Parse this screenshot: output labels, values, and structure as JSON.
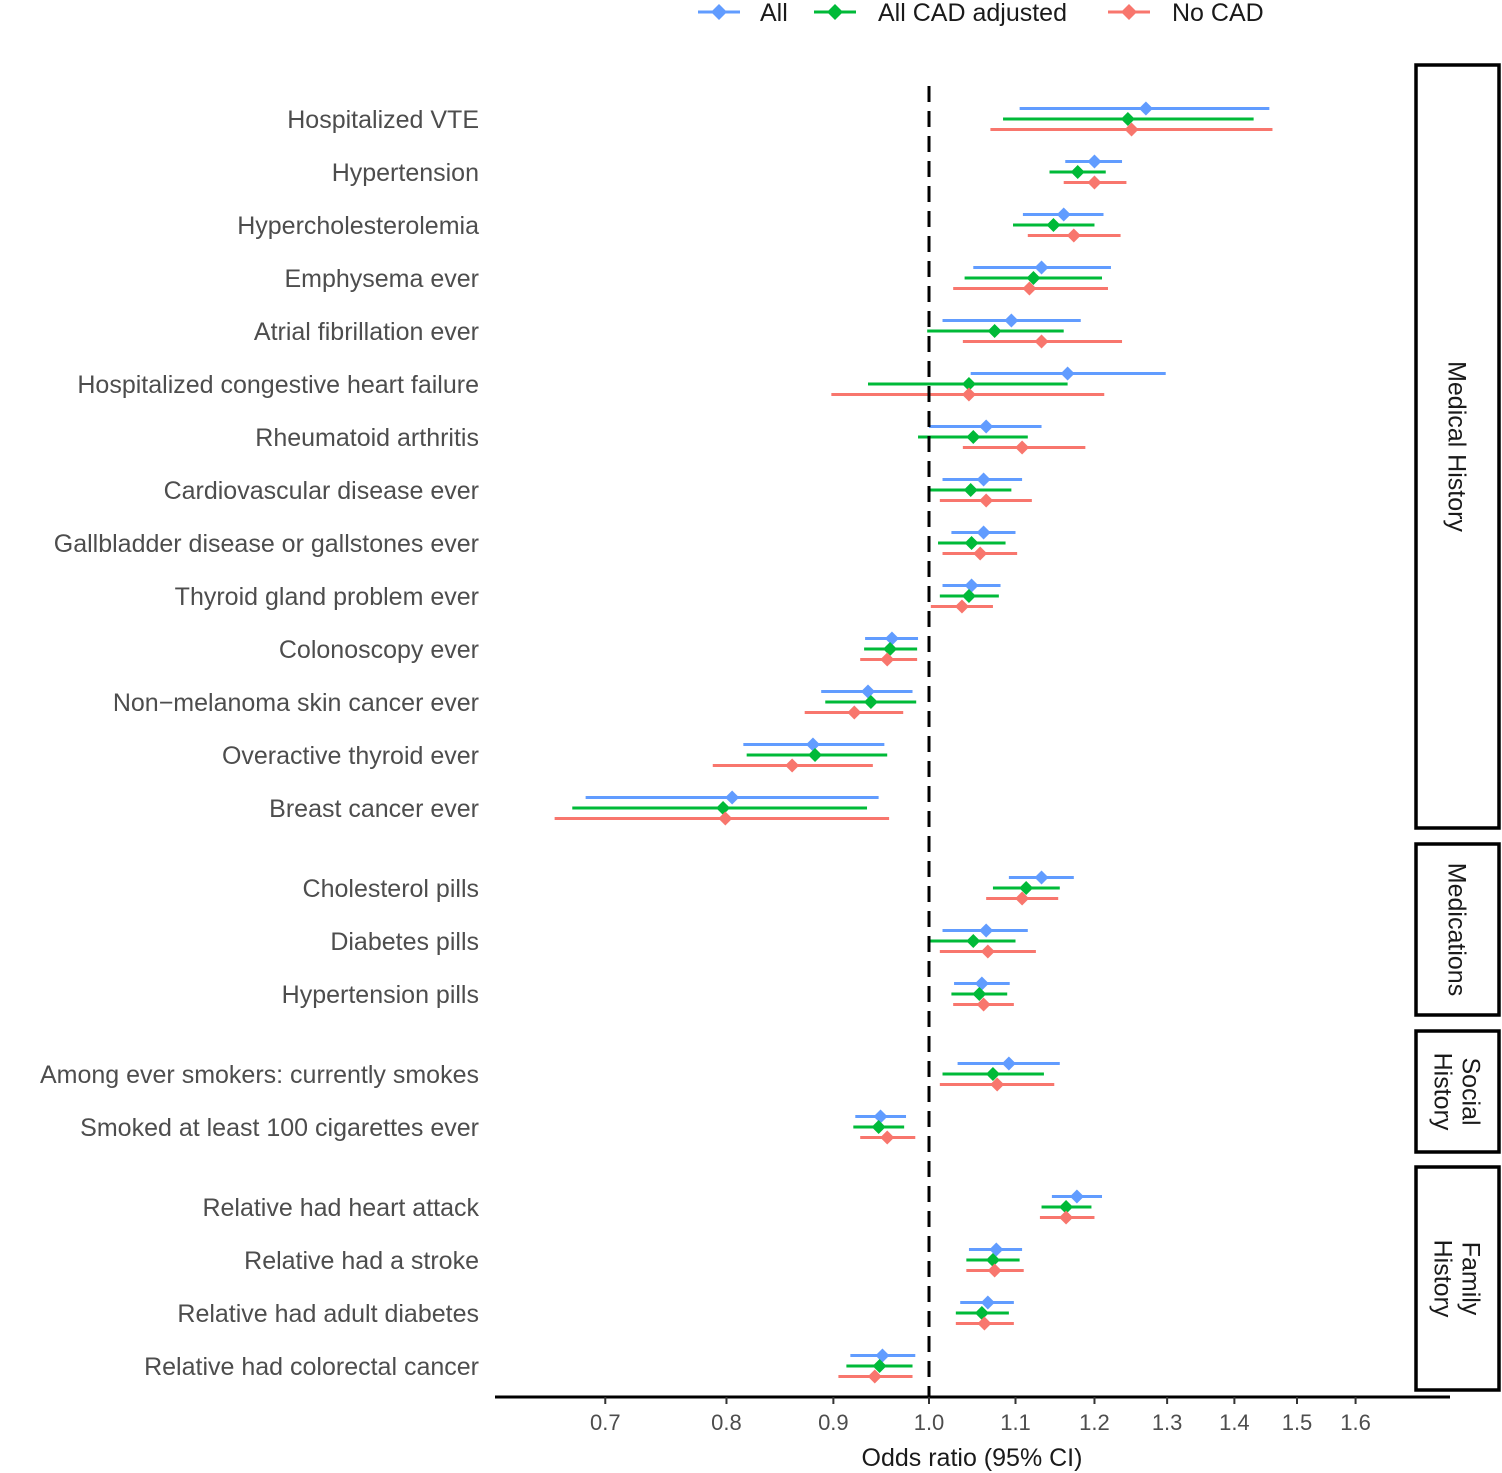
{
  "chart_data": {
    "type": "forest",
    "xlabel": "Odds ratio (95% CI)",
    "x_scale": "log",
    "xlim": [
      0.62,
      1.8
    ],
    "x_ticks": [
      0.7,
      0.8,
      0.9,
      1.0,
      1.1,
      1.2,
      1.3,
      1.4,
      1.5,
      1.6
    ],
    "x_tick_labels": [
      "0.7",
      "0.8",
      "0.9",
      "1.0",
      "1.1",
      "1.2",
      "1.3",
      "1.4",
      "1.5",
      "1.6"
    ],
    "reference_line": 1.0,
    "legend": [
      {
        "name": "All",
        "color": "#619CFF"
      },
      {
        "name": "All CAD adjusted",
        "color": "#00BA38"
      },
      {
        "name": "No CAD",
        "color": "#F8766D"
      }
    ],
    "panels": [
      {
        "label": "Medical History",
        "rows": [
          {
            "label": "Hospitalized VTE",
            "all": [
              1.27,
              1.105,
              1.455
            ],
            "cad": [
              1.245,
              1.085,
              1.43
            ],
            "nocad": [
              1.25,
              1.07,
              1.46
            ]
          },
          {
            "label": "Hypertension",
            "all": [
              1.2,
              1.162,
              1.237
            ],
            "cad": [
              1.178,
              1.142,
              1.215
            ],
            "nocad": [
              1.2,
              1.16,
              1.243
            ]
          },
          {
            "label": "Hypercholesterolemia",
            "all": [
              1.16,
              1.109,
              1.212
            ],
            "cad": [
              1.147,
              1.097,
              1.2
            ],
            "nocad": [
              1.173,
              1.115,
              1.235
            ]
          },
          {
            "label": "Emphysema ever",
            "all": [
              1.132,
              1.05,
              1.222
            ],
            "cad": [
              1.122,
              1.04,
              1.21
            ],
            "nocad": [
              1.117,
              1.027,
              1.218
            ]
          },
          {
            "label": "Atrial fibrillation ever",
            "all": [
              1.095,
              1.015,
              1.182
            ],
            "cad": [
              1.075,
              0.998,
              1.16
            ],
            "nocad": [
              1.132,
              1.038,
              1.237
            ]
          },
          {
            "label": "Hospitalized congestive heart failure",
            "all": [
              1.165,
              1.047,
              1.298
            ],
            "cad": [
              1.045,
              0.935,
              1.165
            ],
            "nocad": [
              1.045,
              0.898,
              1.213
            ]
          },
          {
            "label": "Rheumatoid arthritis",
            "all": [
              1.065,
              1.0,
              1.132
            ],
            "cad": [
              1.05,
              0.988,
              1.115
            ],
            "nocad": [
              1.108,
              1.038,
              1.188
            ]
          },
          {
            "label": "Cardiovascular disease ever",
            "all": [
              1.062,
              1.015,
              1.108
            ],
            "cad": [
              1.047,
              1.0,
              1.095
            ],
            "nocad": [
              1.065,
              1.012,
              1.12
            ]
          },
          {
            "label": "Gallbladder disease or gallstones ever",
            "all": [
              1.062,
              1.025,
              1.1
            ],
            "cad": [
              1.048,
              1.01,
              1.088
            ],
            "nocad": [
              1.058,
              1.015,
              1.102
            ]
          },
          {
            "label": "Thyroid gland problem ever",
            "all": [
              1.048,
              1.015,
              1.082
            ],
            "cad": [
              1.045,
              1.012,
              1.08
            ],
            "nocad": [
              1.037,
              1.002,
              1.073
            ]
          },
          {
            "label": "Colonoscopy ever",
            "all": [
              0.96,
              0.932,
              0.988
            ],
            "cad": [
              0.958,
              0.931,
              0.987
            ],
            "nocad": [
              0.955,
              0.927,
              0.987
            ]
          },
          {
            "label": "Non−melanoma skin cancer ever",
            "all": [
              0.935,
              0.888,
              0.982
            ],
            "cad": [
              0.938,
              0.892,
              0.986
            ],
            "nocad": [
              0.921,
              0.872,
              0.972
            ]
          },
          {
            "label": "Overactive thyroid ever",
            "all": [
              0.88,
              0.815,
              0.952
            ],
            "cad": [
              0.882,
              0.818,
              0.955
            ],
            "nocad": [
              0.86,
              0.788,
              0.94
            ]
          },
          {
            "label": "Breast cancer ever",
            "all": [
              0.805,
              0.685,
              0.946
            ],
            "cad": [
              0.797,
              0.675,
              0.934
            ],
            "nocad": [
              0.799,
              0.662,
              0.957
            ]
          }
        ]
      },
      {
        "label": "Medications",
        "rows": [
          {
            "label": "Cholesterol pills",
            "all": [
              1.132,
              1.092,
              1.173
            ],
            "cad": [
              1.113,
              1.073,
              1.155
            ],
            "nocad": [
              1.108,
              1.065,
              1.153
            ]
          },
          {
            "label": "Diabetes pills",
            "all": [
              1.065,
              1.015,
              1.115
            ],
            "cad": [
              1.05,
              1.0,
              1.1
            ],
            "nocad": [
              1.067,
              1.012,
              1.125
            ]
          },
          {
            "label": "Hypertension pills",
            "all": [
              1.06,
              1.028,
              1.093
            ],
            "cad": [
              1.057,
              1.025,
              1.09
            ],
            "nocad": [
              1.062,
              1.027,
              1.098
            ]
          }
        ]
      },
      {
        "label": "Social History",
        "rows": [
          {
            "label": "Among ever smokers: currently smokes",
            "all": [
              1.092,
              1.032,
              1.155
            ],
            "cad": [
              1.073,
              1.015,
              1.135
            ],
            "nocad": [
              1.078,
              1.012,
              1.148
            ]
          },
          {
            "label": "Smoked at least 100 cigarettes ever",
            "all": [
              0.948,
              0.922,
              0.975
            ],
            "cad": [
              0.946,
              0.92,
              0.973
            ],
            "nocad": [
              0.955,
              0.927,
              0.985
            ]
          }
        ]
      },
      {
        "label": "Family History",
        "rows": [
          {
            "label": "Relative had heart attack",
            "all": [
              1.177,
              1.145,
              1.21
            ],
            "cad": [
              1.163,
              1.132,
              1.196
            ],
            "nocad": [
              1.163,
              1.13,
              1.2
            ]
          },
          {
            "label": "Relative had a stroke",
            "all": [
              1.077,
              1.045,
              1.108
            ],
            "cad": [
              1.073,
              1.042,
              1.105
            ],
            "nocad": [
              1.075,
              1.042,
              1.11
            ]
          },
          {
            "label": "Relative had adult diabetes",
            "all": [
              1.067,
              1.035,
              1.098
            ],
            "cad": [
              1.06,
              1.03,
              1.092
            ],
            "nocad": [
              1.063,
              1.03,
              1.098
            ]
          },
          {
            "label": "Relative had colorectal cancer",
            "all": [
              0.95,
              0.917,
              0.985
            ],
            "cad": [
              0.947,
              0.913,
              0.982
            ],
            "nocad": [
              0.942,
              0.905,
              0.982
            ]
          }
        ]
      }
    ]
  }
}
